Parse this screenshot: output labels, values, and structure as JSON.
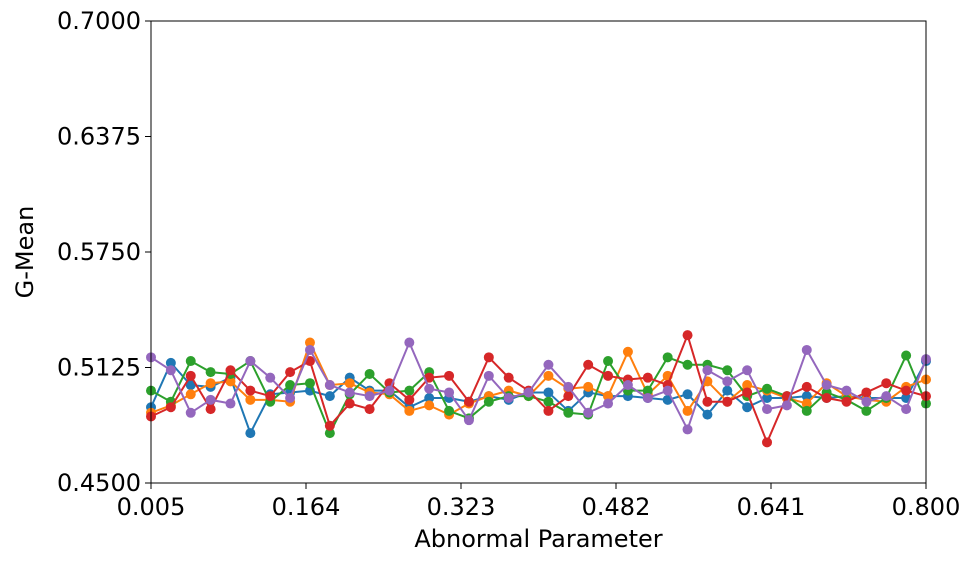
{
  "chart_data": {
    "type": "line",
    "title": "",
    "xlabel": "Abnormal Parameter",
    "ylabel": "G-Mean",
    "xlim": [
      0.005,
      0.8
    ],
    "ylim": [
      0.45,
      0.7
    ],
    "xticks": [
      "0.005",
      "0.164",
      "0.323",
      "0.482",
      "0.641",
      "0.800"
    ],
    "yticks": [
      "0.4500",
      "0.5125",
      "0.5750",
      "0.6375",
      "0.7000"
    ],
    "grid": false,
    "legend": "none",
    "x_count": 40,
    "series": [
      {
        "color": "#1f77b4",
        "values": [
          0.491,
          0.515,
          0.503,
          0.502,
          0.507,
          0.477,
          0.498,
          0.499,
          0.5,
          0.497,
          0.507,
          0.5,
          0.5,
          0.491,
          0.496,
          0.496,
          0.494,
          0.497,
          0.495,
          0.499,
          0.499,
          0.489,
          0.499,
          0.497,
          0.497,
          0.496,
          0.495,
          0.498,
          0.487,
          0.5,
          0.491,
          0.496,
          0.496,
          0.497,
          0.496,
          0.497,
          0.496,
          0.496,
          0.496,
          0.516
        ]
      },
      {
        "color": "#ff7f0e",
        "values": [
          0.488,
          0.492,
          0.498,
          0.504,
          0.505,
          0.495,
          0.495,
          0.494,
          0.526,
          0.503,
          0.504,
          0.499,
          0.498,
          0.489,
          0.492,
          0.487,
          0.493,
          0.497,
          0.5,
          0.497,
          0.508,
          0.501,
          0.502,
          0.497,
          0.521,
          0.498,
          0.508,
          0.489,
          0.505,
          0.494,
          0.503,
          0.5,
          0.496,
          0.493,
          0.504,
          0.497,
          0.495,
          0.494,
          0.502,
          0.506
        ]
      },
      {
        "color": "#2ca02c",
        "values": [
          0.5,
          0.494,
          0.516,
          0.51,
          0.509,
          0.516,
          0.494,
          0.503,
          0.504,
          0.477,
          0.498,
          0.509,
          0.499,
          0.5,
          0.51,
          0.489,
          0.485,
          0.494,
          0.497,
          0.497,
          0.494,
          0.488,
          0.487,
          0.516,
          0.5,
          0.5,
          0.518,
          0.514,
          0.514,
          0.511,
          0.497,
          0.501,
          0.497,
          0.489,
          0.499,
          0.495,
          0.489,
          0.496,
          0.519,
          0.493
        ]
      },
      {
        "color": "#d62728",
        "values": [
          0.486,
          0.491,
          0.508,
          0.49,
          0.511,
          0.5,
          0.497,
          0.51,
          0.516,
          0.481,
          0.493,
          0.49,
          0.504,
          0.495,
          0.507,
          0.508,
          0.494,
          0.518,
          0.507,
          0.5,
          0.489,
          0.497,
          0.514,
          0.508,
          0.506,
          0.507,
          0.503,
          0.53,
          0.494,
          0.494,
          0.499,
          0.472,
          0.497,
          0.502,
          0.496,
          0.494,
          0.499,
          0.504,
          0.5,
          0.497
        ]
      },
      {
        "color": "#9467bd",
        "values": [
          0.518,
          0.511,
          0.488,
          0.495,
          0.493,
          0.516,
          0.507,
          0.496,
          0.522,
          0.503,
          0.499,
          0.497,
          0.5,
          0.526,
          0.501,
          0.499,
          0.484,
          0.508,
          0.496,
          0.499,
          0.514,
          0.502,
          0.488,
          0.493,
          0.503,
          0.496,
          0.5,
          0.479,
          0.511,
          0.505,
          0.511,
          0.49,
          0.492,
          0.522,
          0.503,
          0.5,
          0.494,
          0.497,
          0.49,
          0.517
        ]
      }
    ]
  }
}
